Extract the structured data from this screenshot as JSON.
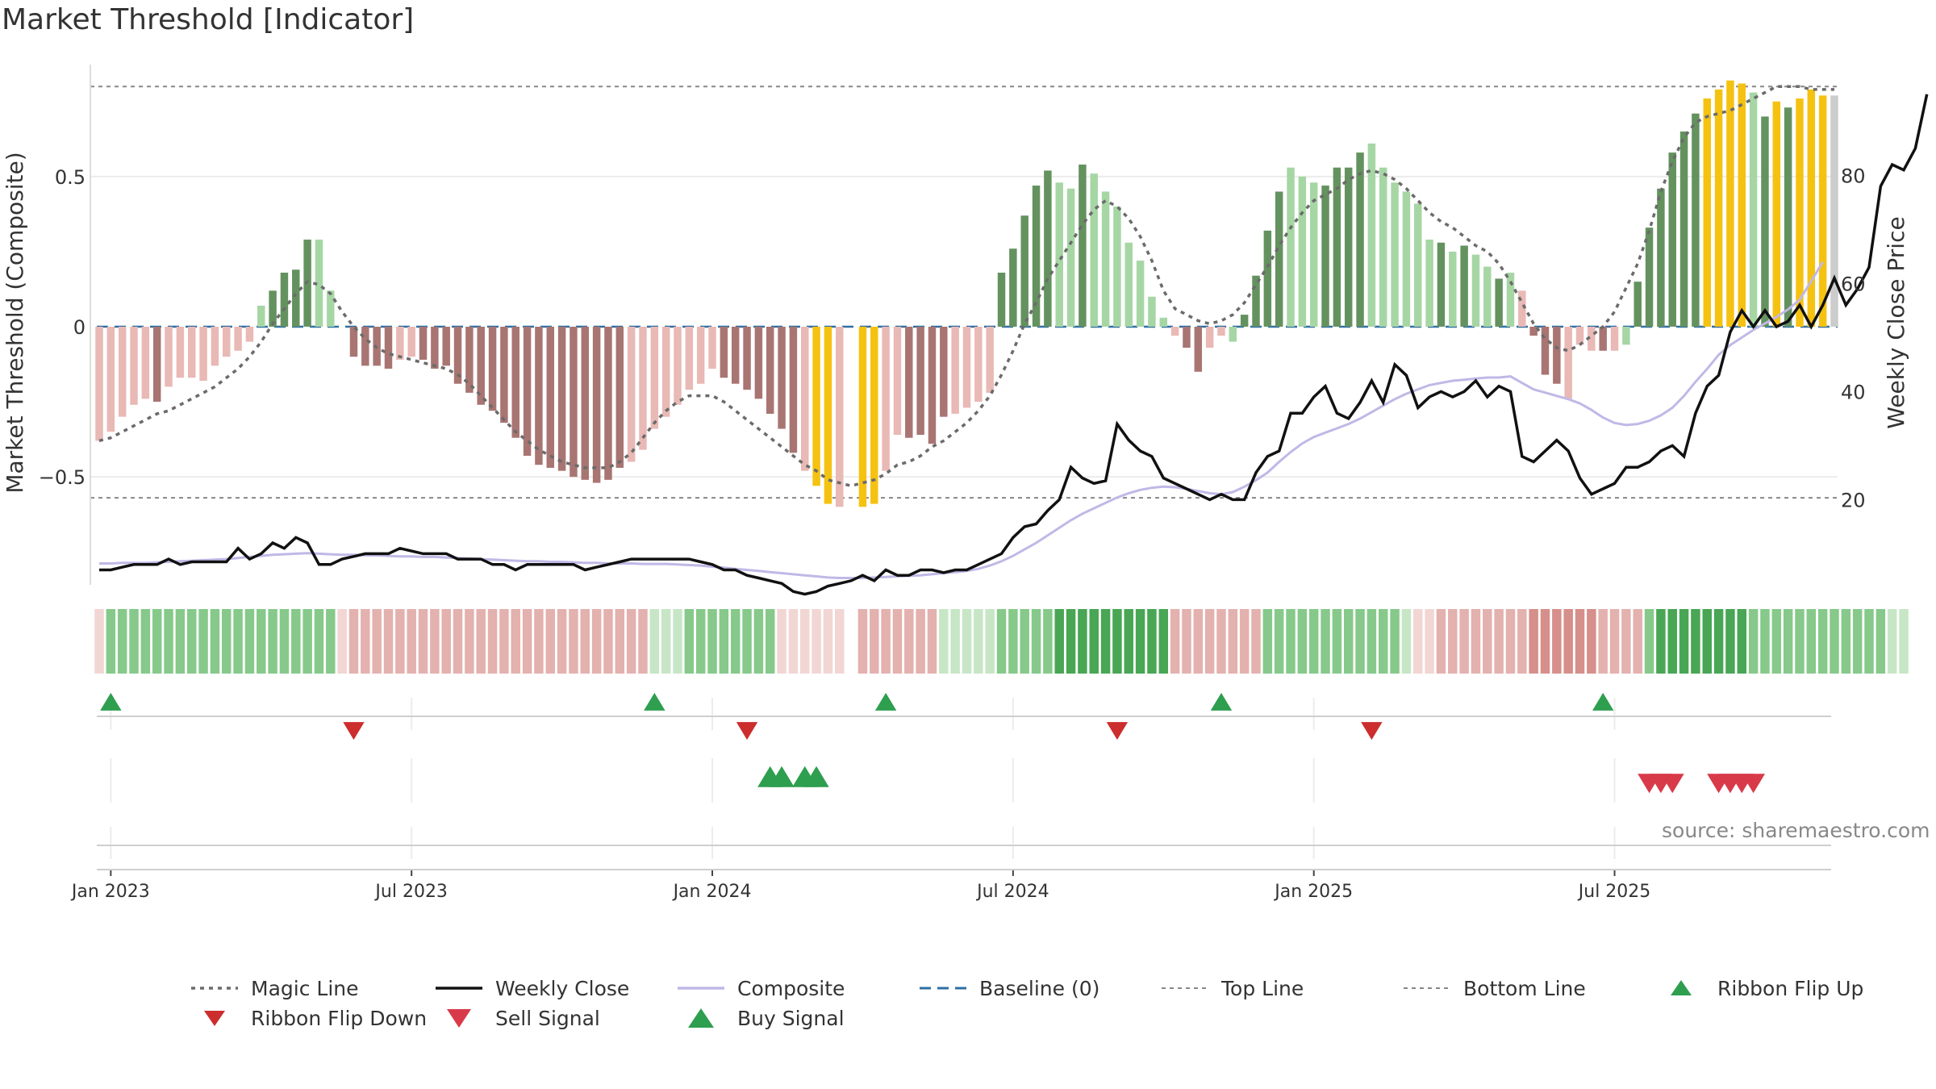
{
  "title": "Market Threshold [Indicator]",
  "source": "source: sharemaestro.com",
  "colors": {
    "magic": "#6b6b6b",
    "close": "#111111",
    "composite": "#c1b8e6",
    "baseline": "#2f6fa3",
    "refline": "#888888",
    "buy": "#2e9e4f",
    "sell": "#d83a4a",
    "flipdown": "#cc2d2d",
    "gold": "#f5c211"
  },
  "chart_data": {
    "type": "bar",
    "x_start_label": "2022-12-16",
    "interval": "weekly",
    "title": "Market Threshold [Indicator]",
    "ylabel": "Market Threshold (Composite)",
    "y2label": "Weekly Close Price",
    "ylim": [
      -0.9,
      0.9
    ],
    "y2lim": [
      2,
      102
    ],
    "yticks": [
      {
        "v": 0.5,
        "label": "0.5"
      },
      {
        "v": 0,
        "label": "0"
      },
      {
        "v": -0.5,
        "label": "−0.5"
      }
    ],
    "y2ticks": [
      {
        "v": 80,
        "label": "80"
      },
      {
        "v": 60,
        "label": "60"
      },
      {
        "v": 40,
        "label": "40"
      },
      {
        "v": 20,
        "label": "20"
      }
    ],
    "xticks": [
      {
        "week": 1,
        "label": "Jan 2023"
      },
      {
        "week": 27,
        "label": "Jul 2023"
      },
      {
        "week": 53,
        "label": "Jan 2024"
      },
      {
        "week": 79,
        "label": "Jul 2024"
      },
      {
        "week": 105,
        "label": "Jan 2025"
      },
      {
        "week": 131,
        "label": "Jul 2025"
      }
    ],
    "top_line": 0.8,
    "bottom_line": -0.57,
    "grid": true,
    "legend_position": "bottom",
    "legend": [
      {
        "key": "magic",
        "label": "Magic Line"
      },
      {
        "key": "close",
        "label": "Weekly Close"
      },
      {
        "key": "composite",
        "label": "Composite"
      },
      {
        "key": "baseline",
        "label": "Baseline (0)"
      },
      {
        "key": "top",
        "label": "Top Line"
      },
      {
        "key": "bottom",
        "label": "Bottom Line"
      },
      {
        "key": "flipup",
        "label": "Ribbon Flip Up"
      },
      {
        "key": "flipdown",
        "label": "Ribbon Flip Down"
      },
      {
        "key": "sellsig",
        "label": "Sell Signal"
      },
      {
        "key": "buysig",
        "label": "Buy Signal"
      }
    ],
    "bar_values": [
      -0.38,
      -0.35,
      -0.3,
      -0.26,
      -0.24,
      -0.25,
      -0.2,
      -0.17,
      -0.17,
      -0.18,
      -0.13,
      -0.1,
      -0.08,
      -0.05,
      0.07,
      0.12,
      0.18,
      0.19,
      0.29,
      0.29,
      0.12,
      0,
      -0.1,
      -0.13,
      -0.13,
      -0.14,
      -0.11,
      -0.1,
      -0.11,
      -0.14,
      -0.13,
      -0.19,
      -0.22,
      -0.26,
      -0.28,
      -0.32,
      -0.37,
      -0.43,
      -0.46,
      -0.47,
      -0.48,
      -0.5,
      -0.51,
      -0.52,
      -0.51,
      -0.47,
      -0.45,
      -0.41,
      -0.34,
      -0.3,
      -0.26,
      -0.21,
      -0.19,
      -0.14,
      -0.17,
      -0.19,
      -0.21,
      -0.24,
      -0.29,
      -0.34,
      -0.42,
      -0.48,
      -0.53,
      -0.59,
      -0.6,
      null,
      -0.6,
      -0.59,
      -0.48,
      -0.36,
      -0.37,
      -0.36,
      -0.39,
      -0.3,
      -0.29,
      -0.27,
      -0.25,
      -0.22,
      0.18,
      0.26,
      0.37,
      0.47,
      0.52,
      0.48,
      0.46,
      0.54,
      0.51,
      0.45,
      0.4,
      0.28,
      0.22,
      0.1,
      0.03,
      -0.03,
      -0.07,
      -0.15,
      -0.07,
      -0.03,
      -0.05,
      0.04,
      0.17,
      0.32,
      0.45,
      0.53,
      0.5,
      0.48,
      0.47,
      0.53,
      0.53,
      0.58,
      0.61,
      0.53,
      0.48,
      0.45,
      0.41,
      0.29,
      0.28,
      0.25,
      0.27,
      0.24,
      0.2,
      0.16,
      0.18,
      0.12,
      -0.03,
      -0.16,
      -0.19,
      -0.24,
      -0.06,
      -0.08,
      -0.08,
      -0.08,
      -0.06,
      0.15,
      0.33,
      0.46,
      0.58,
      0.65,
      0.71,
      0.76,
      0.79,
      0.82,
      0.81,
      0.78,
      0.7,
      0.75,
      0.73,
      0.76,
      0.79,
      0.77,
      0.77
    ],
    "bar_colors": [
      "lr",
      "lr",
      "lr",
      "lr",
      "lr",
      "dr",
      "lr",
      "lr",
      "lr",
      "lr",
      "lr",
      "lr",
      "lr",
      "lr",
      "lg",
      "dg",
      "dg",
      "dg",
      "dg",
      "lg",
      "lg",
      "lr",
      "dr",
      "dr",
      "dr",
      "dr",
      "lr",
      "lr",
      "dr",
      "dr",
      "dr",
      "dr",
      "dr",
      "dr",
      "dr",
      "dr",
      "dr",
      "dr",
      "dr",
      "dr",
      "dr",
      "dr",
      "dr",
      "dr",
      "dr",
      "dr",
      "lr",
      "lr",
      "lr",
      "lr",
      "lr",
      "lr",
      "lr",
      "lr",
      "dr",
      "dr",
      "dr",
      "dr",
      "dr",
      "dr",
      "dr",
      "lr",
      "gd",
      "gd",
      "lr",
      "lr",
      "gd",
      "gd",
      "lr",
      "lr",
      "dr",
      "dr",
      "dr",
      "dr",
      "lr",
      "lr",
      "lr",
      "lr",
      "dg",
      "dg",
      "dg",
      "dg",
      "dg",
      "lg",
      "lg",
      "dg",
      "lg",
      "lg",
      "lg",
      "lg",
      "lg",
      "lg",
      "lg",
      "lr",
      "dr",
      "dr",
      "lr",
      "lr",
      "lg",
      "dg",
      "dg",
      "dg",
      "dg",
      "lg",
      "lg",
      "lg",
      "dg",
      "dg",
      "dg",
      "dg",
      "lg",
      "lg",
      "lg",
      "lg",
      "lg",
      "lg",
      "dg",
      "lg",
      "dg",
      "lg",
      "lg",
      "dg",
      "lg",
      "lr",
      "dr",
      "dr",
      "dr",
      "lr",
      "lr",
      "lr",
      "dr",
      "lr",
      "lg",
      "dg",
      "dg",
      "dg",
      "dg",
      "dg",
      "dg",
      "gd",
      "gd",
      "gd",
      "gd",
      "lg",
      "dg",
      "gd",
      "dg",
      "gd",
      "gd",
      "gd"
    ],
    "magic_line": [
      -0.38,
      -0.37,
      -0.35,
      -0.33,
      -0.31,
      -0.29,
      -0.28,
      -0.26,
      -0.24,
      -0.22,
      -0.2,
      -0.17,
      -0.14,
      -0.1,
      -0.05,
      0.01,
      0.06,
      0.11,
      0.15,
      0.14,
      0.11,
      0.05,
      0,
      -0.04,
      -0.07,
      -0.09,
      -0.1,
      -0.11,
      -0.12,
      -0.13,
      -0.14,
      -0.16,
      -0.19,
      -0.23,
      -0.27,
      -0.31,
      -0.35,
      -0.38,
      -0.41,
      -0.43,
      -0.45,
      -0.46,
      -0.47,
      -0.47,
      -0.47,
      -0.45,
      -0.42,
      -0.37,
      -0.32,
      -0.28,
      -0.25,
      -0.23,
      -0.23,
      -0.23,
      -0.25,
      -0.28,
      -0.31,
      -0.34,
      -0.37,
      -0.4,
      -0.43,
      -0.46,
      -0.48,
      -0.51,
      -0.52,
      -0.53,
      -0.52,
      -0.51,
      -0.49,
      -0.46,
      -0.45,
      -0.43,
      -0.4,
      -0.38,
      -0.35,
      -0.32,
      -0.28,
      -0.23,
      -0.16,
      -0.08,
      0.01,
      0.08,
      0.16,
      0.22,
      0.28,
      0.34,
      0.39,
      0.42,
      0.4,
      0.36,
      0.3,
      0.22,
      0.12,
      0.06,
      0.04,
      0.02,
      0.01,
      0.02,
      0.04,
      0.08,
      0.14,
      0.2,
      0.27,
      0.33,
      0.38,
      0.42,
      0.44,
      0.46,
      0.49,
      0.51,
      0.52,
      0.51,
      0.49,
      0.46,
      0.42,
      0.38,
      0.35,
      0.33,
      0.3,
      0.27,
      0.25,
      0.21,
      0.15,
      0.08,
      0.01,
      -0.04,
      -0.07,
      -0.08,
      -0.06,
      -0.03,
      0,
      0.05,
      0.13,
      0.21,
      0.32,
      0.45,
      0.55,
      0.63,
      0.68,
      0.7,
      0.71,
      0.72,
      0.74,
      0.76,
      0.78,
      0.8,
      0.8,
      0.8,
      0.79,
      0.79,
      0.79
    ],
    "weekly_close": [
      7,
      7,
      7.5,
      8,
      8,
      8,
      9,
      8,
      8.5,
      8.5,
      8.5,
      8.5,
      11,
      9,
      10,
      12,
      11,
      13,
      12,
      8,
      8,
      9,
      9.5,
      10,
      10,
      10,
      11,
      10.5,
      10,
      10,
      10,
      9,
      9,
      9,
      8,
      8,
      7,
      8,
      8,
      8,
      8,
      8,
      7,
      7.5,
      8,
      8.5,
      9,
      9,
      9,
      9,
      9,
      9,
      8.5,
      8,
      7,
      7,
      6,
      5.5,
      5,
      4.5,
      3,
      2.5,
      3,
      4,
      4.5,
      5,
      6,
      5,
      7,
      6,
      6,
      7,
      7,
      6.5,
      7,
      7,
      8,
      9,
      10,
      13,
      15,
      15.5,
      18,
      20,
      26,
      24,
      23,
      23.5,
      34,
      31,
      29,
      28,
      24,
      23,
      22,
      21,
      20,
      21,
      20,
      20,
      25,
      28,
      29,
      36,
      36,
      39,
      41,
      36,
      35,
      38,
      42,
      38,
      45,
      43,
      37,
      39,
      40,
      39,
      40,
      42,
      39,
      41,
      40,
      28,
      27,
      29,
      31,
      29,
      24,
      21,
      22,
      23,
      26,
      26,
      27,
      29,
      30,
      28,
      36,
      41,
      43,
      51,
      55,
      52,
      55,
      52,
      53,
      56,
      52,
      56,
      61,
      56,
      59,
      63,
      78,
      82,
      81,
      85,
      95
    ],
    "composite": [
      8.2,
      8.2,
      8.3,
      8.3,
      8.3,
      8.4,
      8.5,
      8.6,
      8.7,
      8.8,
      8.9,
      9,
      9.2,
      9.4,
      9.6,
      9.8,
      9.9,
      10,
      10.1,
      10,
      9.9,
      9.8,
      9.8,
      9.7,
      9.7,
      9.6,
      9.5,
      9.5,
      9.4,
      9.4,
      9.3,
      9.2,
      9.1,
      9,
      8.9,
      8.8,
      8.7,
      8.6,
      8.6,
      8.5,
      8.5,
      8.4,
      8.3,
      8.3,
      8.2,
      8.2,
      8.2,
      8.1,
      8.1,
      8.1,
      8,
      7.9,
      7.8,
      7.6,
      7.4,
      7.2,
      7,
      6.8,
      6.6,
      6.4,
      6.2,
      6,
      5.8,
      5.6,
      5.5,
      5.5,
      5.5,
      5.6,
      5.7,
      5.8,
      5.9,
      6,
      6.2,
      6.4,
      6.6,
      6.8,
      7.2,
      7.8,
      8.6,
      9.6,
      10.8,
      12,
      13.4,
      14.8,
      16.2,
      17.4,
      18.4,
      19.4,
      20.4,
      21.2,
      21.8,
      22.2,
      22.4,
      22.3,
      22,
      21.6,
      21.2,
      21,
      21.4,
      22.4,
      23.6,
      25,
      27,
      28.8,
      30.4,
      31.6,
      32.4,
      33.2,
      34,
      35,
      36.2,
      37.4,
      38.6,
      39.6,
      40.4,
      41.2,
      41.6,
      42,
      42.2,
      42.4,
      42.6,
      42.6,
      42.8,
      41.6,
      40.4,
      39.8,
      39.2,
      38.6,
      37.8,
      36.6,
      35.2,
      34.2,
      33.8,
      34,
      34.6,
      35.6,
      37,
      39.2,
      41.8,
      44.2,
      46.8,
      48.6,
      50,
      51.4,
      52.6,
      53.8,
      55.2,
      57,
      60.4,
      64
    ],
    "ribbon": [
      "r1",
      "g2",
      "g2",
      "g2",
      "g2",
      "g2",
      "g2",
      "g2",
      "g2",
      "g2",
      "g2",
      "g2",
      "g2",
      "g2",
      "g2",
      "g2",
      "g2",
      "g2",
      "g2",
      "g2",
      "g2",
      "r1",
      "r2",
      "r2",
      "r2",
      "r2",
      "r2",
      "r2",
      "r2",
      "r2",
      "r2",
      "r2",
      "r2",
      "r2",
      "r2",
      "r2",
      "r2",
      "r2",
      "r2",
      "r2",
      "r2",
      "r2",
      "r2",
      "r2",
      "r2",
      "r2",
      "r2",
      "r2",
      "g1",
      "g1",
      "g1",
      "g2",
      "g2",
      "g2",
      "g2",
      "g2",
      "g2",
      "g2",
      "g2",
      "r1",
      "r1",
      "r1",
      "r1",
      "r1",
      "r1",
      null,
      "r2",
      "r2",
      "r2",
      "r2",
      "r2",
      "r2",
      "r2",
      "g1",
      "g1",
      "g1",
      "g1",
      "g1",
      "g2",
      "g2",
      "g2",
      "g2",
      "g2",
      "g3",
      "g3",
      "g3",
      "g3",
      "g3",
      "g3",
      "g3",
      "g3",
      "g3",
      "g3",
      "r2",
      "r2",
      "r2",
      "r2",
      "r2",
      "r2",
      "r2",
      "r2",
      "g2",
      "g2",
      "g2",
      "g2",
      "g2",
      "g2",
      "g2",
      "g2",
      "g2",
      "g2",
      "g2",
      "g2",
      "g1",
      "r1",
      "r1",
      "r2",
      "r2",
      "r2",
      "r2",
      "r2",
      "r2",
      "r2",
      "r2",
      "r3",
      "r3",
      "r3",
      "r3",
      "r3",
      "r3",
      "r2",
      "r2",
      "r2",
      "r2",
      "g2",
      "g3",
      "g3",
      "g3",
      "g3",
      "g3",
      "g3",
      "g3",
      "g3",
      "g2",
      "g2",
      "g2",
      "g2",
      "g2",
      "g2",
      "g2",
      "g2",
      "g2",
      "g2",
      "g2",
      "g2",
      "g1",
      "g1"
    ],
    "ribbon_flip_up": [
      1,
      48,
      68,
      97,
      130
    ],
    "ribbon_flip_down": [
      22,
      56,
      88,
      110
    ],
    "buy_signal": [
      58,
      59,
      61,
      62
    ],
    "sell_signal": [
      134,
      135,
      136,
      140,
      141,
      142,
      143
    ]
  }
}
